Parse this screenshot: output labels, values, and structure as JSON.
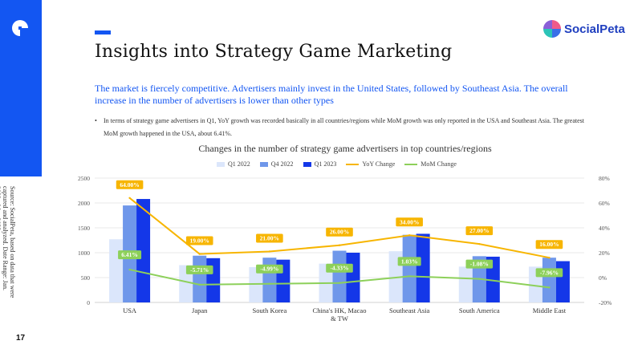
{
  "page": {
    "title": "Insights into Strategy Game Marketing",
    "subtitle": "The market is fiercely competitive. Advertisers mainly invest in the United States, followed by Southeast Asia. The overall increase in the number of advertisers is lower than other types",
    "bullet": "In terms of strategy game advertisers in Q1, YoY growth was recorded basically in all countries/regions while MoM growth was only reported in the USA and Southeast Asia. The greatest MoM growth happened in the USA, about 6.41%.",
    "brand": "SocialPeta",
    "source_note": "Source: SocialPeta, based on data that were captured and analyzed. Date Range: Jan. 2022 - Mar. 2023",
    "page_number": "17"
  },
  "colors": {
    "accent": "#1356f2",
    "q1_2022": "#dbe6fb",
    "q4_2022": "#6f97ea",
    "q1_2023": "#1437e8",
    "yoy": "#f7b500",
    "mom": "#8dd05a"
  },
  "chart_data": {
    "type": "bar",
    "title": "Changes in the number of strategy game advertisers in top countries/regions",
    "categories": [
      "USA",
      "Japan",
      "South Korea",
      "China's HK, Macao & TW",
      "Southeast Asia",
      "South America",
      "Middle East"
    ],
    "series": [
      {
        "name": "Q1 2022",
        "type": "bar",
        "axis": "left",
        "values": [
          1270,
          750,
          710,
          780,
          1030,
          720,
          720
        ]
      },
      {
        "name": "Q4 2022",
        "type": "bar",
        "axis": "left",
        "values": [
          1950,
          940,
          900,
          1040,
          1360,
          930,
          900
        ]
      },
      {
        "name": "Q1 2023",
        "type": "bar",
        "axis": "left",
        "values": [
          2080,
          890,
          860,
          1000,
          1380,
          920,
          830
        ]
      },
      {
        "name": "YoY Change",
        "type": "line",
        "axis": "right",
        "values": [
          64.0,
          19.0,
          21.0,
          26.0,
          34.0,
          27.0,
          16.0
        ],
        "labels": [
          "64.00%",
          "19.00%",
          "21.00%",
          "26.00%",
          "34.00%",
          "27.00%",
          "16.00%"
        ]
      },
      {
        "name": "MoM Change",
        "type": "line",
        "axis": "right",
        "values": [
          6.41,
          -5.71,
          -4.99,
          -4.33,
          1.03,
          -1.08,
          -7.96
        ],
        "labels": [
          "6.41%",
          "-5.71%",
          "-4.99%",
          "-4.33%",
          "1.03%",
          "-1.08%",
          "-7.96%"
        ]
      }
    ],
    "ylim_left": [
      0,
      2500
    ],
    "yticks_left": [
      "0",
      "500",
      "1000",
      "1500",
      "2000",
      "2500"
    ],
    "ylim_right": [
      -20,
      80
    ],
    "yticks_right": [
      "-20%",
      "0%",
      "20%",
      "40%",
      "60%",
      "80%"
    ],
    "grid": true,
    "legend": "top-center"
  }
}
